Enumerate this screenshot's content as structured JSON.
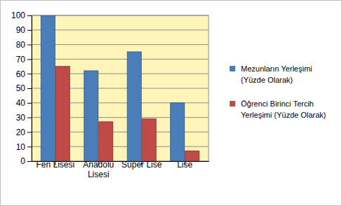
{
  "chart_data": {
    "type": "bar",
    "categories": [
      "Fen Lisesi",
      "Anadolu Lisesi",
      "Süper Lise",
      "Lise"
    ],
    "series": [
      {
        "name": "Mezunların Yerleşimi (Yüzde Olarak)",
        "color": "#4a7ebb",
        "values": [
          100,
          62,
          75,
          40
        ]
      },
      {
        "name": "Öğrenci Birinci Tercih Yerleşimi (Yüzde Olarak)",
        "color": "#be4b48",
        "values": [
          65,
          27,
          29,
          7
        ]
      }
    ],
    "ylim": [
      0,
      100
    ],
    "yticks": [
      0,
      10,
      20,
      30,
      40,
      50,
      60,
      70,
      80,
      90,
      100
    ],
    "grid": true,
    "legend": "right"
  }
}
